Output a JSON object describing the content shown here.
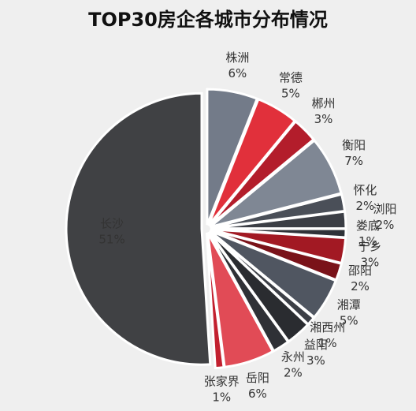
{
  "chart_data": {
    "type": "pie",
    "title": "TOP30房企各城市分布情况",
    "categories": [
      "株洲",
      "常德",
      "郴州",
      "衡阳",
      "怀化",
      "浏阳",
      "娄底",
      "宁乡",
      "邵阳",
      "湘潭",
      "湘西州",
      "益阳",
      "永州",
      "岳阳",
      "张家界",
      "长沙"
    ],
    "values": [
      6,
      5,
      3,
      7,
      2,
      2,
      1,
      3,
      2,
      5,
      1,
      3,
      2,
      6,
      1,
      51
    ],
    "value_labels": [
      "6%",
      "5%",
      "3%",
      "7%",
      "2%",
      "2%",
      "1%",
      "3%",
      "2%",
      "5%",
      "1%",
      "3%",
      "2%",
      "6%",
      "1%",
      "51%"
    ],
    "colors": [
      "#737b89",
      "#e1303b",
      "#b31d2b",
      "#7f8794",
      "#4a4f58",
      "#3b3e45",
      "#2f3238",
      "#a21923",
      "#7a1219",
      "#505661",
      "#3c3f46",
      "#2a2c30",
      "#2f3136",
      "#e14b56",
      "#c2202f",
      "#404144"
    ]
  }
}
